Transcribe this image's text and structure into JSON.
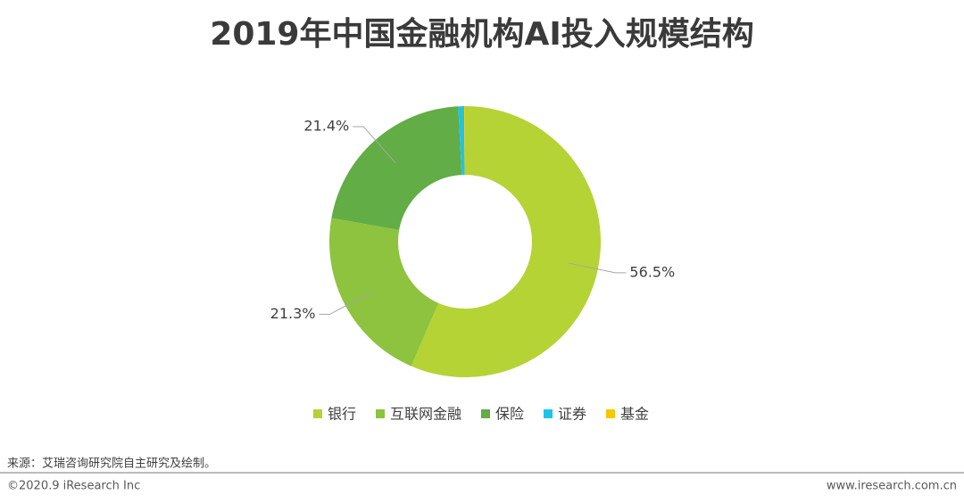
{
  "chart_data": {
    "type": "donut",
    "title": "2019年中国金融机构AI投入规模结构",
    "categories": [
      "银行",
      "互联网金融",
      "保险",
      "证券",
      "基金"
    ],
    "values": [
      56.5,
      21.3,
      21.4,
      0.7,
      0.1
    ],
    "value_labels": [
      "56.5%",
      "21.3%",
      "21.4%",
      null,
      null
    ],
    "colors": [
      "#b5d334",
      "#8dc33e",
      "#62ad45",
      "#1ec4e8",
      "#f5c800"
    ],
    "legend": "bottom"
  },
  "source": "来源：艾瑞咨询研究院自主研究及绘制。",
  "copyright": "©2020.9 iResearch Inc",
  "website": "www.iresearch.com.cn"
}
